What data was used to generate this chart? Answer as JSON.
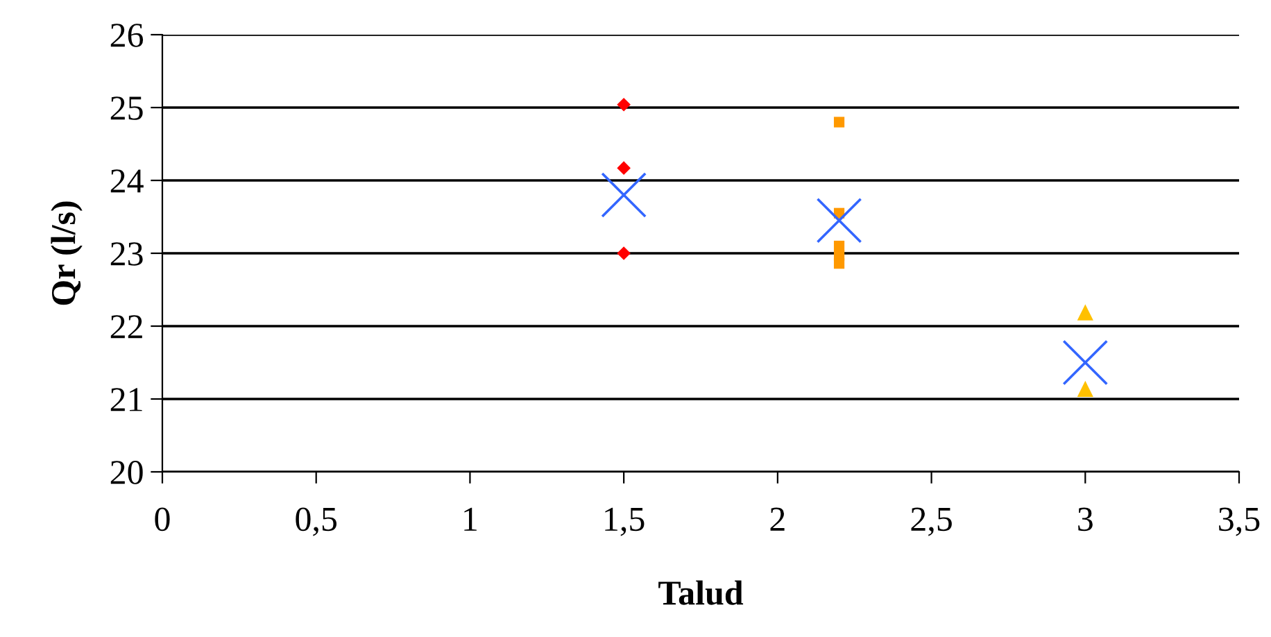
{
  "chart_data": {
    "type": "scatter",
    "xlabel": "Talud",
    "ylabel": "Qr (l/s)",
    "xlim": [
      0,
      3.5
    ],
    "ylim": [
      20,
      26
    ],
    "xticks": [
      0,
      {
        "value": 0.5,
        "label": "0,5"
      },
      1,
      {
        "value": 1.5,
        "label": "1,5"
      },
      2,
      {
        "value": 2.5,
        "label": "2,5"
      },
      3,
      {
        "value": 3.5,
        "label": "3,5"
      }
    ],
    "yticks": [
      20,
      21,
      22,
      23,
      24,
      25,
      26
    ],
    "grid": "y",
    "series": [
      {
        "color": "#ff0000",
        "marker": "diamond",
        "x": [
          1.5,
          1.5,
          1.5
        ],
        "values": [
          25.04,
          24.17,
          23.0
        ]
      },
      {
        "color": "#ff9900",
        "marker": "square",
        "x": [
          2.2,
          2.2,
          2.2,
          2.2,
          2.2
        ],
        "values": [
          24.8,
          23.55,
          23.1,
          22.97,
          22.86
        ]
      },
      {
        "color": "#ffc000",
        "marker": "triangle",
        "x": [
          3,
          3
        ],
        "values": [
          22.19,
          21.14
        ]
      },
      {
        "color": "#3366ff",
        "marker": "cross",
        "x": [
          1.5,
          2.2,
          3
        ],
        "values": [
          23.8,
          23.45,
          21.5
        ]
      }
    ]
  }
}
